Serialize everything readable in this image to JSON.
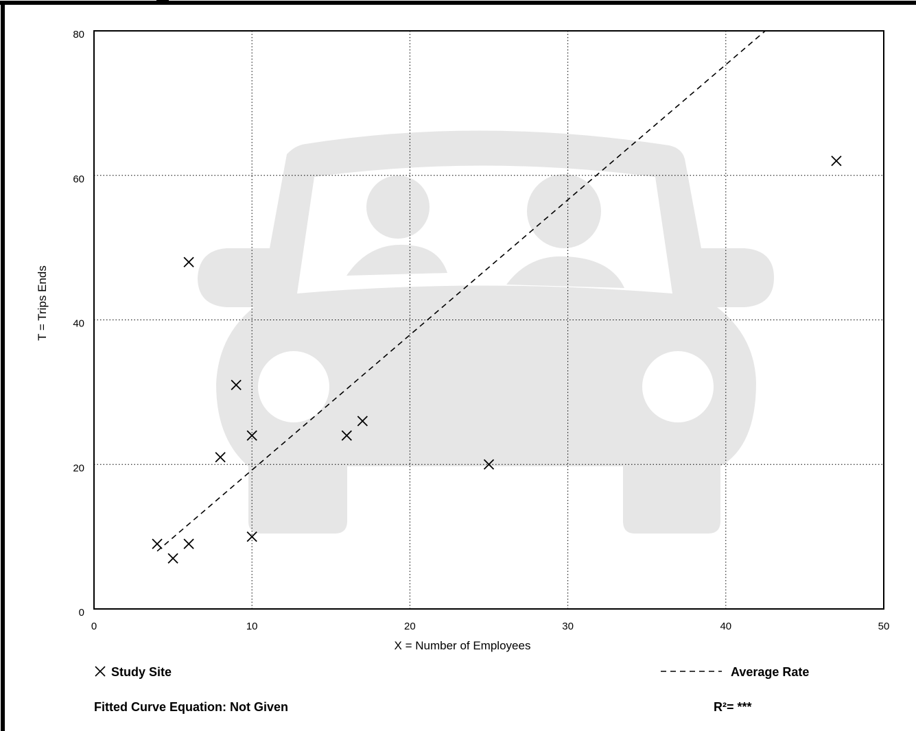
{
  "colors": {
    "frame": "#000000",
    "grid": "#000000",
    "watermark": "#e6e6e6",
    "marker": "#000000",
    "background": "#ffffff"
  },
  "watermark_icon": "car-with-two-occupants-icon",
  "chart_data": {
    "type": "scatter",
    "title": "",
    "xlabel": "X = Number of Employees",
    "ylabel": "T = Trips Ends",
    "xlim": [
      0,
      50
    ],
    "ylim": [
      0,
      80
    ],
    "x_ticks": [
      0,
      10,
      20,
      30,
      40,
      50
    ],
    "y_ticks": [
      0,
      20,
      40,
      60,
      80
    ],
    "grid": "dotted, major ticks",
    "series": [
      {
        "name": "Study Site",
        "marker": "x",
        "points": [
          {
            "x": 4,
            "y": 9
          },
          {
            "x": 5,
            "y": 7
          },
          {
            "x": 6,
            "y": 9
          },
          {
            "x": 6,
            "y": 48
          },
          {
            "x": 8,
            "y": 21
          },
          {
            "x": 9,
            "y": 31
          },
          {
            "x": 10,
            "y": 24
          },
          {
            "x": 10,
            "y": 10
          },
          {
            "x": 16,
            "y": 24
          },
          {
            "x": 17,
            "y": 26
          },
          {
            "x": 25,
            "y": 20
          },
          {
            "x": 47,
            "y": 62
          }
        ]
      },
      {
        "name": "Average Rate",
        "style": "dashed",
        "line": [
          {
            "x": 4,
            "y": 8
          },
          {
            "x": 42.5,
            "y": 80
          }
        ]
      }
    ],
    "legend": {
      "study_site": "Study Site",
      "average_rate": "Average Rate"
    },
    "footer": {
      "fitted_curve": "Fitted Curve Equation: Not Given",
      "r_squared": "R²= ***"
    }
  }
}
